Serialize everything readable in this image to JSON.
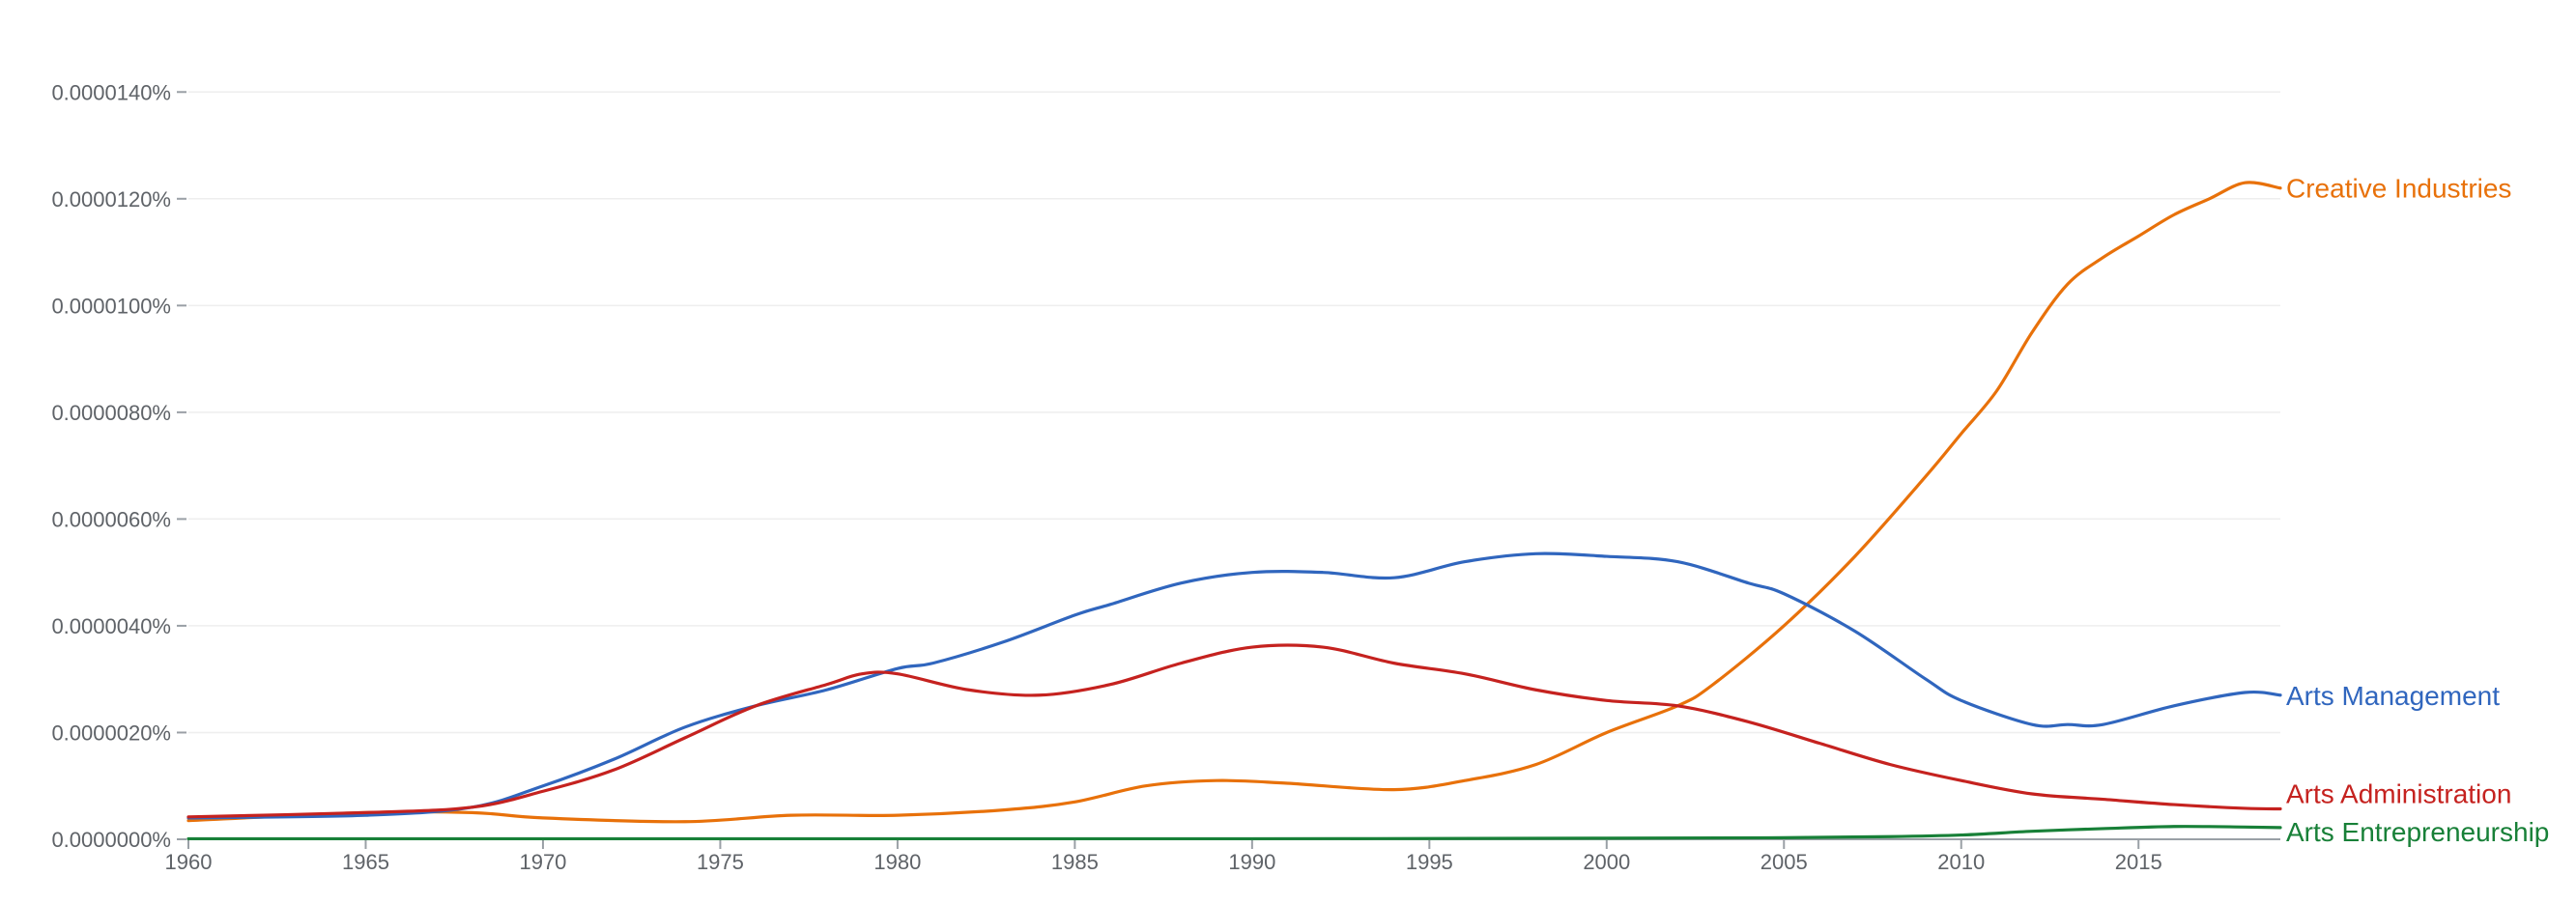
{
  "chart_data": {
    "type": "line",
    "title": "",
    "xlabel": "",
    "ylabel": "",
    "xlim": [
      1960,
      2019
    ],
    "ylim": [
      0,
      1.5e-06
    ],
    "grid": true,
    "y_ticks": [
      {
        "value": 0,
        "label": "0.0000000%"
      },
      {
        "value": 2e-07,
        "label": "0.0000020%"
      },
      {
        "value": 4e-07,
        "label": "0.0000040%"
      },
      {
        "value": 6e-07,
        "label": "0.0000060%"
      },
      {
        "value": 8e-07,
        "label": "0.0000080%"
      },
      {
        "value": 1e-06,
        "label": "0.0000100%"
      },
      {
        "value": 1.2e-06,
        "label": "0.0000120%"
      },
      {
        "value": 1.4e-06,
        "label": "0.0000140%"
      }
    ],
    "x_ticks": [
      {
        "value": 1960,
        "label": "1960"
      },
      {
        "value": 1965,
        "label": "1965"
      },
      {
        "value": 1970,
        "label": "1970"
      },
      {
        "value": 1975,
        "label": "1975"
      },
      {
        "value": 1980,
        "label": "1980"
      },
      {
        "value": 1985,
        "label": "1985"
      },
      {
        "value": 1990,
        "label": "1990"
      },
      {
        "value": 1995,
        "label": "1995"
      },
      {
        "value": 2000,
        "label": "2000"
      },
      {
        "value": 2005,
        "label": "2005"
      },
      {
        "value": 2010,
        "label": "2010"
      },
      {
        "value": 2015,
        "label": "2015"
      }
    ],
    "legend_placement": "right end of each line",
    "series": [
      {
        "name": "Creative Industries",
        "color": "#e8710a",
        "x": [
          1960,
          1965,
          1968,
          1970,
          1974,
          1977,
          1980,
          1983,
          1985,
          1987,
          1989,
          1991,
          1994,
          1996,
          1998,
          2000,
          2002,
          2003,
          2005,
          2007,
          2009,
          2010,
          2011,
          2012,
          2013,
          2014,
          2015,
          2016,
          2017,
          2018,
          2019
        ],
        "values": [
          3.5e-08,
          5e-08,
          5e-08,
          4e-08,
          3.3e-08,
          4.5e-08,
          4.5e-08,
          5.5e-08,
          7e-08,
          1e-07,
          1.1e-07,
          1.05e-07,
          9.3e-08,
          1.1e-07,
          1.4e-07,
          2e-07,
          2.5e-07,
          2.9e-07,
          4e-07,
          5.3e-07,
          6.8e-07,
          7.6e-07,
          8.4e-07,
          9.5e-07,
          1.04e-06,
          1.09e-06,
          1.13e-06,
          1.17e-06,
          1.2e-06,
          1.23e-06,
          1.22e-06
        ]
      },
      {
        "name": "Arts Management",
        "color": "#3066be",
        "x": [
          1960,
          1965,
          1968,
          1970,
          1972,
          1974,
          1976,
          1978,
          1980,
          1981,
          1983,
          1985,
          1986,
          1988,
          1990,
          1992,
          1994,
          1996,
          1998,
          2000,
          2002,
          2004,
          2005,
          2007,
          2009,
          2010,
          2012,
          2013,
          2014,
          2016,
          2018,
          2019
        ],
        "values": [
          4e-08,
          4.5e-08,
          6e-08,
          1e-07,
          1.5e-07,
          2.1e-07,
          2.5e-07,
          2.8e-07,
          3.2e-07,
          3.3e-07,
          3.7e-07,
          4.2e-07,
          4.4e-07,
          4.8e-07,
          5e-07,
          5e-07,
          4.9e-07,
          5.2e-07,
          5.35e-07,
          5.3e-07,
          5.2e-07,
          4.8e-07,
          4.6e-07,
          3.9e-07,
          3e-07,
          2.6e-07,
          2.15e-07,
          2.15e-07,
          2.15e-07,
          2.5e-07,
          2.75e-07,
          2.7e-07
        ]
      },
      {
        "name": "Arts Administration",
        "color": "#c5221f",
        "x": [
          1960,
          1965,
          1968,
          1970,
          1972,
          1974,
          1976,
          1978,
          1979,
          1980,
          1982,
          1984,
          1986,
          1988,
          1990,
          1992,
          1994,
          1996,
          1998,
          2000,
          2002,
          2004,
          2006,
          2008,
          2010,
          2012,
          2014,
          2016,
          2018,
          2019
        ],
        "values": [
          4.2e-08,
          5e-08,
          6e-08,
          9e-08,
          1.3e-07,
          1.9e-07,
          2.5e-07,
          2.9e-07,
          3.1e-07,
          3.1e-07,
          2.8e-07,
          2.7e-07,
          2.9e-07,
          3.3e-07,
          3.6e-07,
          3.6e-07,
          3.3e-07,
          3.1e-07,
          2.8e-07,
          2.6e-07,
          2.5e-07,
          2.2e-07,
          1.8e-07,
          1.4e-07,
          1.1e-07,
          8.5e-08,
          7.5e-08,
          6.5e-08,
          5.8e-08,
          5.7e-08
        ]
      },
      {
        "name": "Arts Entrepreneurship",
        "color": "#188038",
        "x": [
          1960,
          1970,
          1980,
          1990,
          2000,
          2005,
          2008,
          2010,
          2012,
          2014,
          2016,
          2018,
          2019
        ],
        "values": [
          1e-09,
          1e-09,
          1e-09,
          1e-09,
          2e-09,
          3e-09,
          5e-09,
          8e-09,
          1.5e-08,
          2e-08,
          2.4e-08,
          2.3e-08,
          2.2e-08
        ]
      }
    ]
  }
}
